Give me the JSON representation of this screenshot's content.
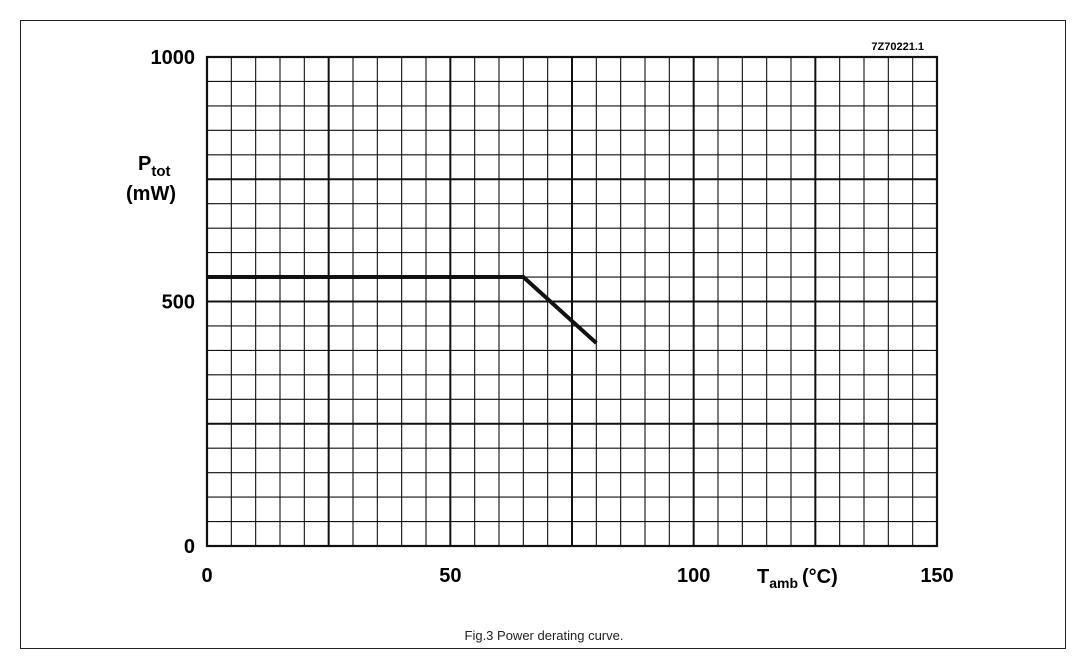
{
  "chart_data": {
    "type": "line",
    "code": "7Z70221.1",
    "caption": "Fig.3 Power derating curve.",
    "ylabel": {
      "symbol": "P",
      "subscript": "tot",
      "unit": "(mW)"
    },
    "xlabel": {
      "symbol": "T",
      "subscript": "amb",
      "unit": "(°C)"
    },
    "xlim": [
      0,
      150
    ],
    "ylim": [
      0,
      1000
    ],
    "xticks": [
      {
        "value": 0,
        "label": "0"
      },
      {
        "value": 50,
        "label": "50"
      },
      {
        "value": 100,
        "label": "100"
      },
      {
        "value": 150,
        "label": "150"
      }
    ],
    "yticks": [
      {
        "value": 0,
        "label": "0"
      },
      {
        "value": 500,
        "label": "500"
      },
      {
        "value": 1000,
        "label": "1000"
      }
    ],
    "grid": {
      "x_minor_step": 5,
      "x_major_step": 25,
      "y_minor_step": 50,
      "y_major_step": 250
    },
    "series": [
      {
        "x": [
          0,
          65,
          80
        ],
        "y": [
          550,
          550,
          415
        ]
      }
    ]
  }
}
